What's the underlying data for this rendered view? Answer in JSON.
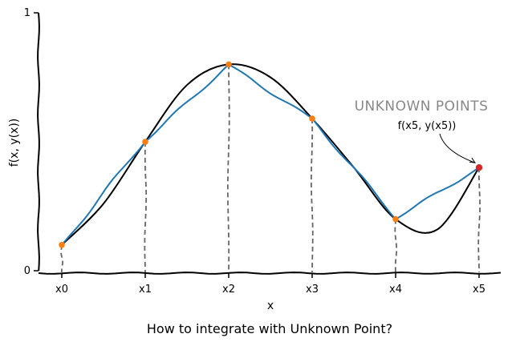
{
  "chart_data": {
    "type": "line",
    "title": "How to integrate with Unknown Point?",
    "xlabel": "x",
    "ylabel": "f(x, y(x))",
    "ylim": [
      0,
      1
    ],
    "y_ticks": [
      "0",
      "1"
    ],
    "x_ticks": [
      "x0",
      "x1",
      "x2",
      "x3",
      "x4",
      "x5"
    ],
    "series": [
      {
        "color": "#000000",
        "style": "smooth-curve",
        "x": [
          0,
          0.5,
          1,
          1.5,
          2,
          2.5,
          3,
          3.5,
          4,
          4.5,
          5
        ],
        "y": [
          0.1,
          0.26,
          0.5,
          0.72,
          0.8,
          0.75,
          0.59,
          0.4,
          0.2,
          0.16,
          0.4
        ]
      },
      {
        "color": "#1f77b4",
        "style": "piecewise-linear",
        "x": [
          0,
          1,
          2,
          3,
          4,
          5
        ],
        "y": [
          0.1,
          0.5,
          0.8,
          0.59,
          0.2,
          0.4
        ]
      }
    ],
    "points": {
      "x": [
        0,
        1,
        2,
        3,
        4
      ],
      "y": [
        0.1,
        0.5,
        0.8,
        0.59,
        0.2
      ],
      "color": "#ff7f0e"
    },
    "unknown_point": {
      "x": 5,
      "y": 0.4,
      "color": "#d62728"
    },
    "annotations": {
      "group_title": "UNKNOWN POINTS",
      "point_label": "f(x5, y(x5))"
    },
    "drop_lines": {
      "color": "#666666",
      "style": "dashed"
    },
    "grid": false
  }
}
